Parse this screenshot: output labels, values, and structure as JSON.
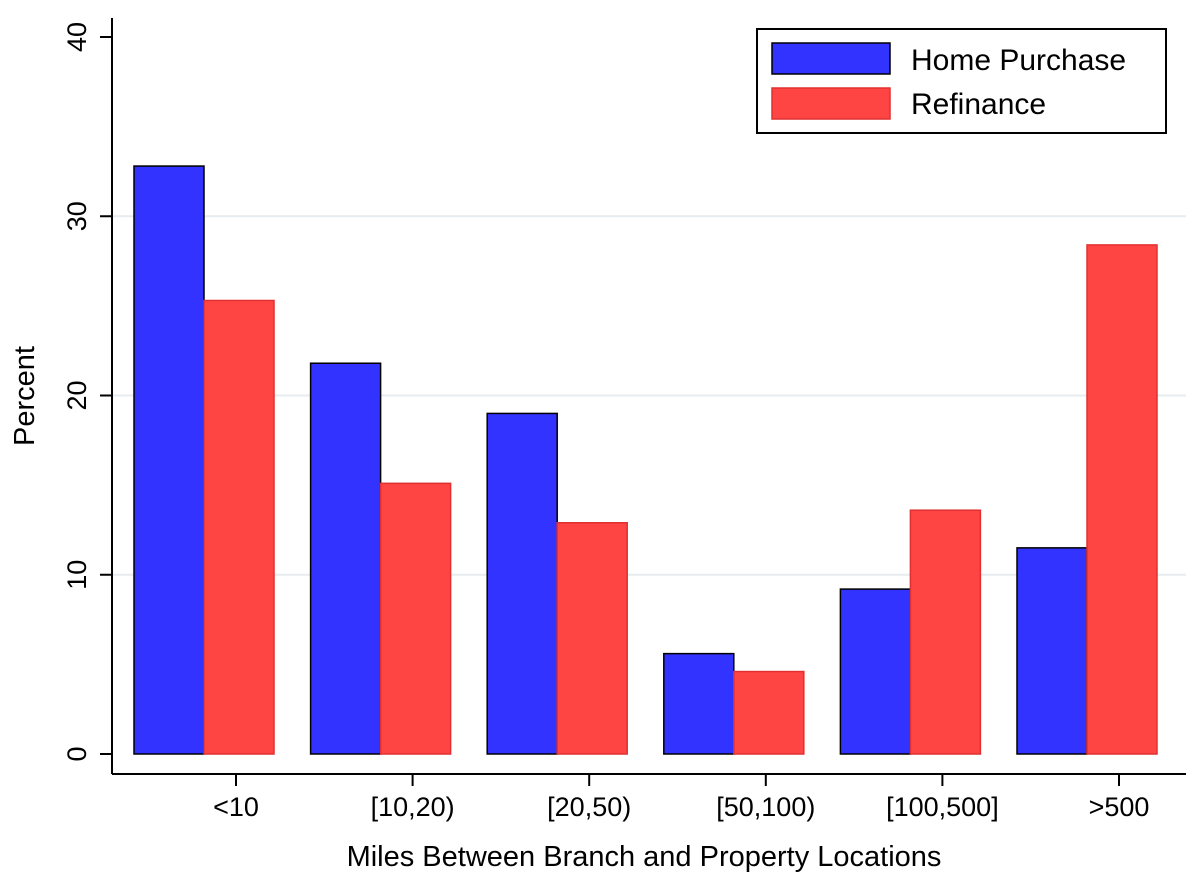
{
  "chart_data": {
    "type": "bar",
    "title": "",
    "xlabel": "Miles Between Branch and Property Locations",
    "ylabel": "Percent",
    "categories": [
      "<10",
      "[10,20)",
      "[20,50)",
      "[50,100)",
      "[100,500]",
      ">500"
    ],
    "ylim": [
      0,
      40
    ],
    "yticks": [
      0,
      10,
      20,
      30,
      40
    ],
    "grid": true,
    "legend_position": "top-right",
    "series": [
      {
        "name": "Home Purchase",
        "color": "#3333ff",
        "values": [
          32.8,
          21.8,
          19.0,
          5.6,
          9.2,
          11.5
        ]
      },
      {
        "name": "Refinance",
        "color": "#ff4444",
        "values": [
          25.3,
          15.1,
          12.9,
          4.6,
          13.6,
          28.4
        ]
      }
    ]
  }
}
